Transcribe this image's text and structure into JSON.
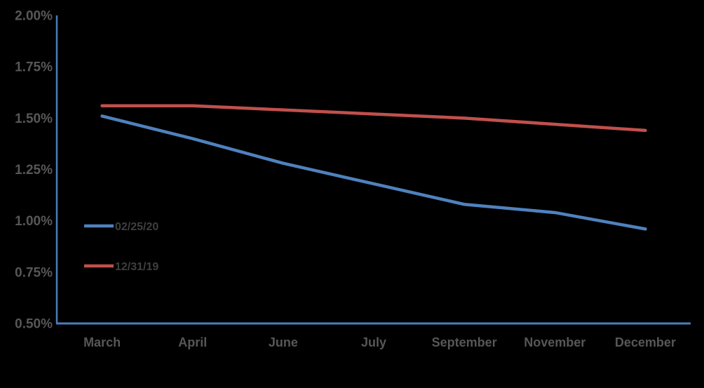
{
  "chart_data": {
    "type": "line",
    "categories": [
      "March",
      "April",
      "June",
      "July",
      "September",
      "November",
      "December"
    ],
    "series": [
      {
        "name": "02/25/20",
        "color": "#4F81BD",
        "values": [
          1.51,
          1.4,
          1.28,
          1.18,
          1.08,
          1.04,
          0.96
        ]
      },
      {
        "name": "12/31/19",
        "color": "#C0504D",
        "values": [
          1.56,
          1.56,
          1.54,
          1.52,
          1.5,
          1.47,
          1.44
        ]
      }
    ],
    "y_ticks": [
      {
        "label": "2.00%",
        "value": 2.0
      },
      {
        "label": "1.75%",
        "value": 1.75
      },
      {
        "label": "1.50%",
        "value": 1.5
      },
      {
        "label": "1.25%",
        "value": 1.25
      },
      {
        "label": "1.00%",
        "value": 1.0
      },
      {
        "label": "0.75%",
        "value": 0.75
      },
      {
        "label": "0.50%",
        "value": 0.5
      }
    ],
    "ylim": [
      0.5,
      2.0
    ],
    "unit": "%",
    "title": "",
    "grid": false,
    "legend_position": "inside-left",
    "colors": {
      "background": "#000000",
      "axis": "#4A7EBB",
      "tick_text": "#575757",
      "legend_text": "#3F3F3F"
    }
  }
}
